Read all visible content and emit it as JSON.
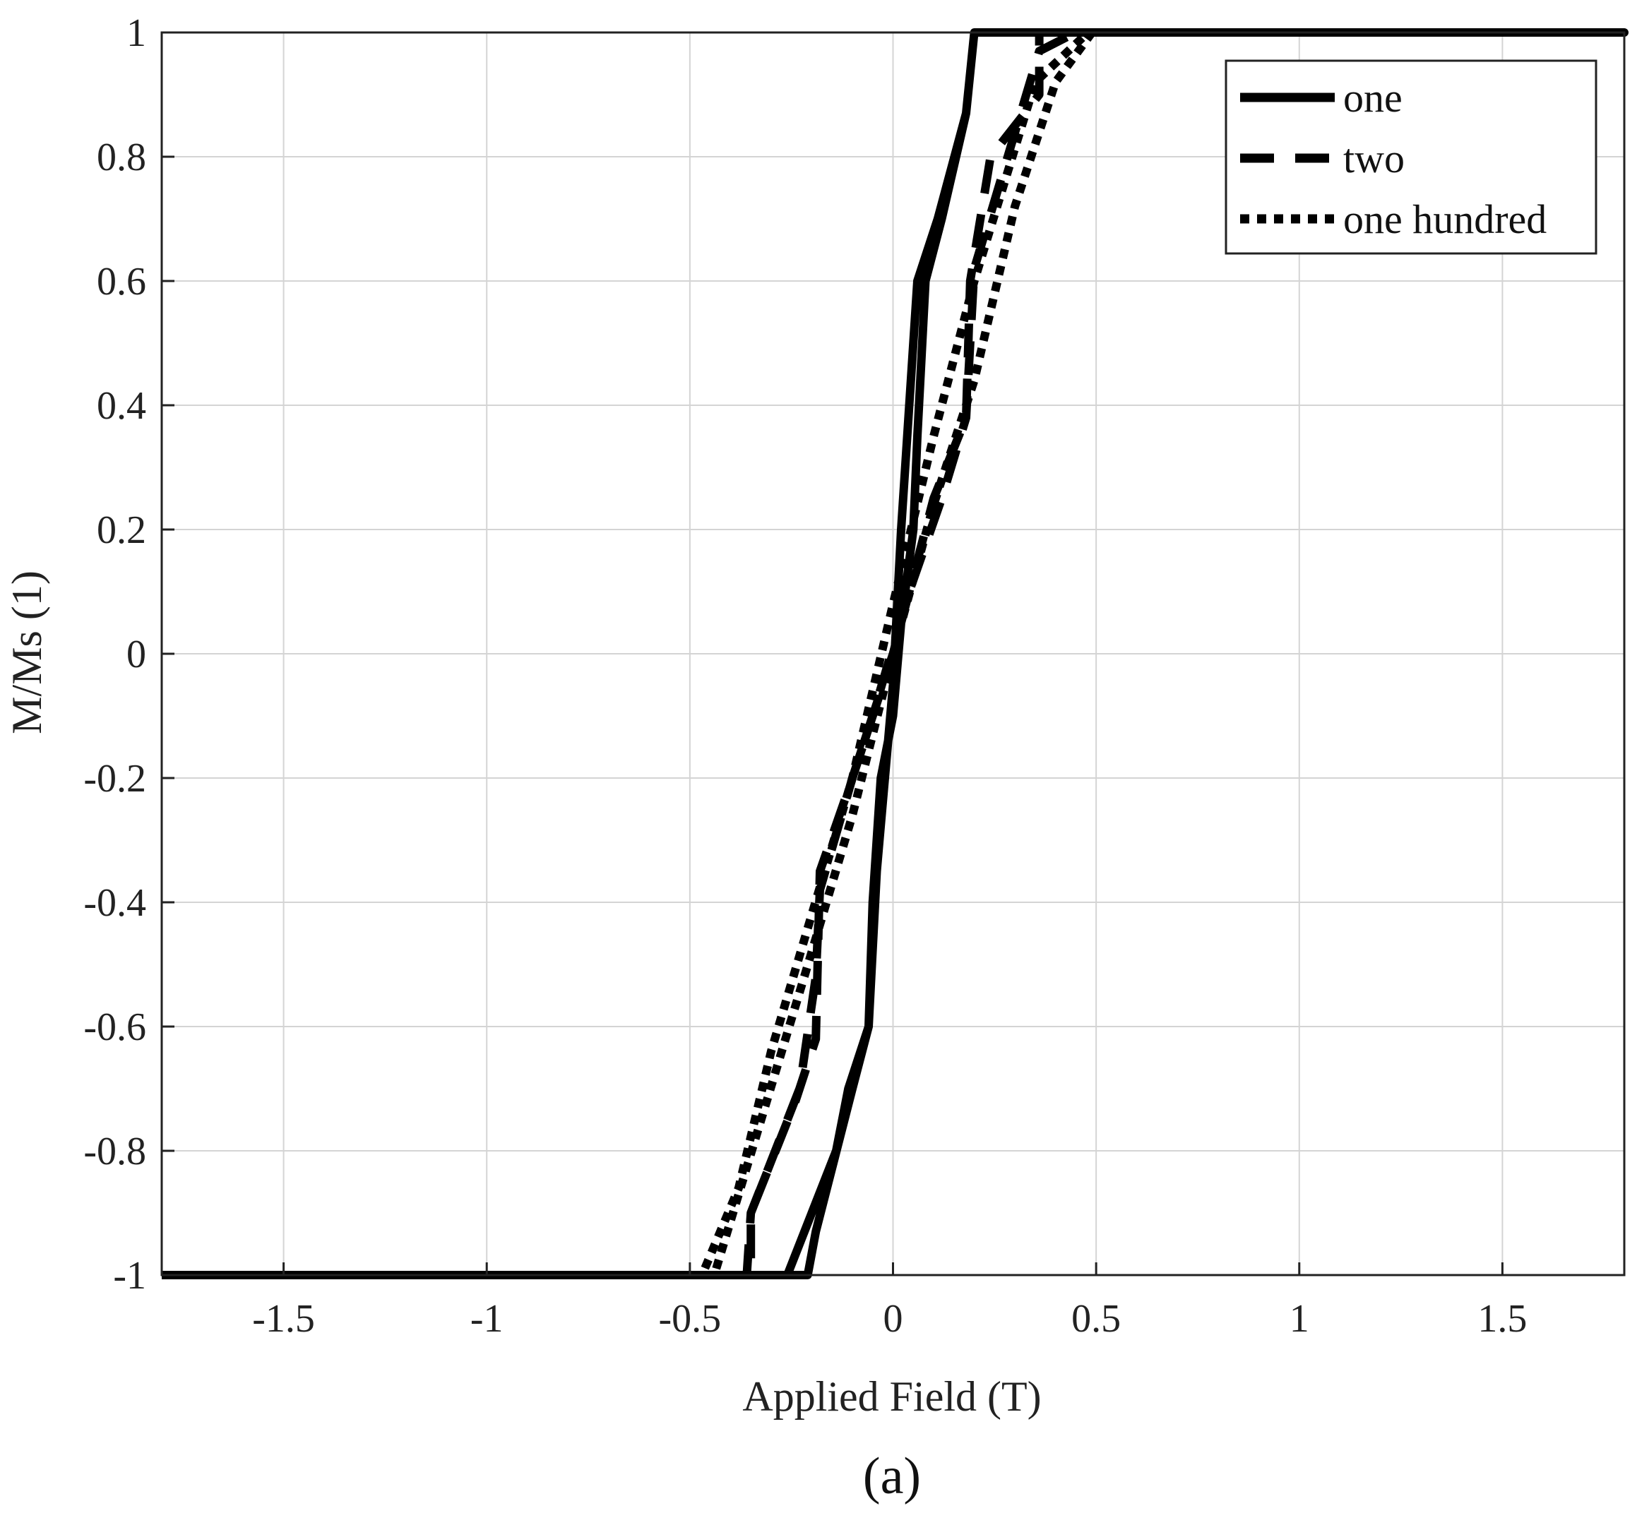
{
  "chart_data": {
    "type": "line",
    "title": "",
    "xlabel": "Applied Field (T)",
    "ylabel": "M/Ms (1)",
    "panel_label": "(a)",
    "xlim": [
      -1.8,
      1.8
    ],
    "ylim": [
      -1,
      1
    ],
    "xticks": [
      -1.5,
      -1,
      -0.5,
      0,
      0.5,
      1,
      1.5
    ],
    "xtick_labels": [
      "-1.5",
      "-1",
      "-0.5",
      "0",
      "0.5",
      "1",
      "1.5"
    ],
    "yticks": [
      -1,
      -0.8,
      -0.6,
      -0.4,
      -0.2,
      0,
      0.2,
      0.4,
      0.6,
      0.8,
      1
    ],
    "ytick_labels": [
      "-1",
      "-0.8",
      "-0.6",
      "-0.4",
      "-0.2",
      "0",
      "0.2",
      "0.4",
      "0.6",
      "0.8",
      "1"
    ],
    "grid": true,
    "legend_position": "top-right",
    "series": [
      {
        "name": "one",
        "style": "solid",
        "x": [
          -1.8,
          -0.21,
          -0.19,
          -0.1,
          -0.06,
          -0.04,
          -0.02,
          0.0,
          0.02,
          0.06,
          0.11,
          0.18,
          0.2,
          0.25,
          1.8,
          1.8,
          0.2,
          0.18,
          0.12,
          0.08,
          0.06,
          0.05,
          0.02,
          0.0,
          -0.03,
          -0.05,
          -0.06,
          -0.11,
          -0.14,
          -0.26,
          -1.8
        ],
        "y": [
          -1,
          -1,
          -0.93,
          -0.7,
          -0.6,
          -0.35,
          -0.2,
          -0.05,
          0.2,
          0.6,
          0.7,
          0.87,
          1,
          1,
          1,
          1,
          1,
          0.87,
          0.7,
          0.6,
          0.35,
          0.2,
          0.05,
          -0.1,
          -0.2,
          -0.4,
          -0.6,
          -0.7,
          -0.8,
          -1,
          -1
        ]
      },
      {
        "name": "two",
        "style": "dashed",
        "x": [
          -1.8,
          -0.35,
          -0.35,
          -0.24,
          -0.19,
          -0.18,
          -0.1,
          0.0,
          0.1,
          0.18,
          0.19,
          0.24,
          0.36,
          0.36,
          0.45,
          1.8,
          1.8,
          0.45,
          0.36,
          0.2,
          0.18,
          0.12,
          0.04,
          -0.05,
          -0.1,
          -0.18,
          -0.19,
          -0.23,
          -0.35,
          -0.36,
          -0.44,
          -1.8
        ],
        "y": [
          -1,
          -1,
          -0.9,
          -0.72,
          -0.62,
          -0.35,
          -0.2,
          0.0,
          0.25,
          0.38,
          0.6,
          0.8,
          0.9,
          1,
          1,
          1,
          1,
          1,
          0.97,
          0.62,
          0.38,
          0.25,
          0.1,
          -0.1,
          -0.2,
          -0.38,
          -0.52,
          -0.7,
          -0.9,
          -1,
          -1,
          -1
        ]
      },
      {
        "name": "one hundred",
        "style": "dotted",
        "x": [
          -1.8,
          -0.44,
          -0.2,
          -0.1,
          0.0,
          0.1,
          0.2,
          0.3,
          0.4,
          0.49,
          1.8,
          1.8,
          0.48,
          0.35,
          0.2,
          0.1,
          0.0,
          -0.1,
          -0.2,
          -0.3,
          -0.38,
          -0.47,
          -1.8
        ],
        "y": [
          -1,
          -1,
          -0.48,
          -0.26,
          0.0,
          0.24,
          0.44,
          0.72,
          0.92,
          1,
          1,
          1,
          1,
          0.92,
          0.6,
          0.35,
          0.08,
          -0.2,
          -0.42,
          -0.64,
          -0.86,
          -1,
          -1
        ]
      }
    ]
  }
}
